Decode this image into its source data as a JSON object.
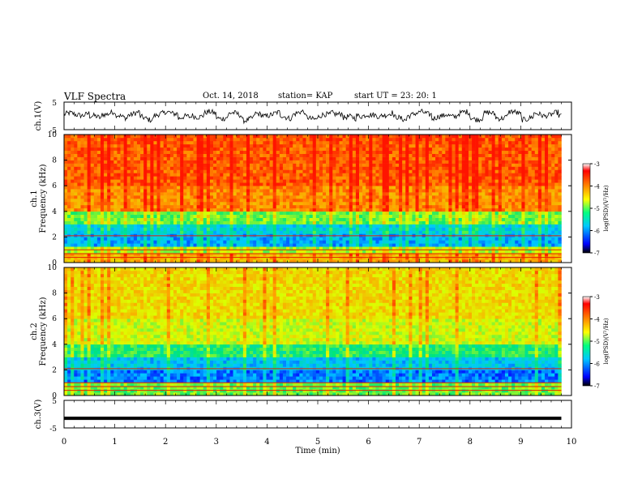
{
  "header": {
    "title": "VLF Spectra",
    "date": "Oct. 14, 2018",
    "station": "station= KAP",
    "start": "start  UT  =   23: 20: 1"
  },
  "chart_data": [
    {
      "type": "line",
      "ylabel": "ch.1(V)",
      "yticks": [
        "5",
        "-5"
      ],
      "ylim": [
        -5,
        5
      ],
      "xlim": [
        0,
        10
      ],
      "series_description": "noisy waveform oscillating mostly between about -2 and +2 V",
      "x": [
        0.0,
        0.25,
        0.5,
        0.75,
        1.0,
        1.25,
        1.5,
        1.75,
        2.0,
        2.25,
        2.5,
        2.75,
        3.0,
        3.25,
        3.5,
        3.75,
        4.0,
        4.25,
        4.5,
        4.75,
        5.0,
        5.25,
        5.5,
        5.75,
        6.0,
        6.25,
        6.5,
        6.75,
        7.0,
        7.25,
        7.5,
        7.75,
        8.0,
        8.25,
        8.5,
        8.75,
        9.0,
        9.25,
        9.5,
        9.75
      ],
      "y": [
        0.5,
        0.8,
        -0.6,
        1.2,
        -0.3,
        0.9,
        -1.0,
        0.4,
        1.5,
        -0.8,
        0.2,
        1.0,
        -0.5,
        0.6,
        -1.2,
        0.3,
        0.8,
        -0.4,
        1.1,
        -0.7,
        0.0,
        1.3,
        -0.9,
        0.5,
        -0.2,
        0.9,
        -1.1,
        0.6,
        1.2,
        -0.6,
        0.3,
        1.0,
        -0.8,
        0.7,
        -0.4,
        1.1,
        -0.9,
        0.4,
        0.8,
        -0.5
      ]
    },
    {
      "type": "heatmap",
      "ylabel": "ch.1\nFrequency  (kHz)",
      "yticks": [
        "0",
        "2",
        "4",
        "6",
        "8",
        "10"
      ],
      "ylim": [
        0,
        10
      ],
      "xlim": [
        0,
        10
      ],
      "colorbar": {
        "label": "log(PSD)(V²/Hz)",
        "ticks": [
          "-3",
          "-4",
          "-5",
          "-6",
          "-7"
        ],
        "range": [
          -7,
          -3
        ]
      },
      "description": "high power (red/orange) above ~4 kHz, green band 2-4 kHz, cyan/blue band 1-3 kHz, red horizontal lines near 0-1 kHz"
    },
    {
      "type": "heatmap",
      "ylabel": "ch.2\nFrequency  (kHz)",
      "yticks": [
        "0",
        "2",
        "4",
        "6",
        "8",
        "10"
      ],
      "ylim": [
        0,
        10
      ],
      "xlim": [
        0,
        10
      ],
      "colorbar": {
        "label": "log(PSD)(V²/Hz)",
        "ticks": [
          "-3",
          "-4",
          "-5",
          "-6",
          "-7"
        ],
        "range": [
          -7,
          -3
        ]
      },
      "description": "yellow/orange above ~4 kHz with red streaks, green band 2-4 kHz, cyan/blue below 2 kHz"
    },
    {
      "type": "line",
      "ylabel": "ch.3(V)",
      "yticks": [
        "5",
        "-5"
      ],
      "ylim": [
        -5,
        5
      ],
      "xlim": [
        0,
        10
      ],
      "x": [
        0,
        9.8
      ],
      "y": [
        -1.5,
        -1.5
      ],
      "xlabel": "Time  (min)",
      "xticks": [
        "0",
        "1",
        "2",
        "3",
        "4",
        "5",
        "6",
        "7",
        "8",
        "9",
        "10"
      ]
    }
  ]
}
